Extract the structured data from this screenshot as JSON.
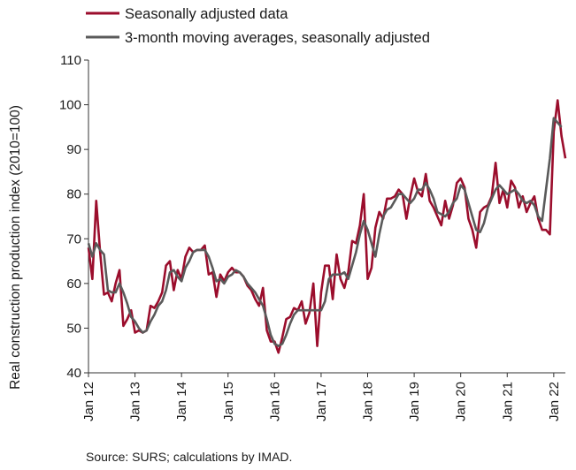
{
  "chart_data": {
    "type": "line",
    "ylabel": "Real construction production index (2010=100)",
    "ylim": [
      40,
      110
    ],
    "yticks": [
      40,
      50,
      60,
      70,
      80,
      90,
      100,
      110
    ],
    "xtick_labels": [
      "Jan 12",
      "Jan 13",
      "Jan 14",
      "Jan 15",
      "Jan 16",
      "Jan 17",
      "Jan 18",
      "Jan 19",
      "Jan 20",
      "Jan 21",
      "Jan 22"
    ],
    "x_start": "Jan 2012",
    "x_end": "Apr 2022",
    "legend_position": "top",
    "grid": false,
    "source": "Source: SURS; calculations by IMAD.",
    "series": [
      {
        "name": "Seasonally adjusted data",
        "color": "#9b0d2c",
        "values": [
          68,
          61,
          78.5,
          67,
          57.5,
          58,
          56,
          60,
          63,
          50.5,
          52,
          54,
          49,
          49.5,
          49,
          49.5,
          55,
          54.5,
          56,
          58,
          64,
          65,
          58.5,
          63,
          61,
          66,
          68,
          67,
          67.5,
          67.5,
          68.5,
          62,
          62.5,
          57,
          62,
          60.5,
          62.5,
          63.5,
          62.5,
          62.5,
          61.5,
          59.5,
          58.5,
          56.5,
          55,
          59,
          49.5,
          47,
          47,
          44.5,
          48,
          52,
          52.5,
          54.5,
          54,
          56,
          51,
          53.5,
          60,
          46,
          58,
          64,
          64,
          56.5,
          66.5,
          61,
          59,
          62.5,
          69.5,
          69,
          73,
          80,
          61,
          63.5,
          72.5,
          76,
          74.5,
          79,
          79,
          79.5,
          81,
          80,
          74.5,
          79.5,
          83.5,
          80.5,
          79.5,
          84.5,
          78.5,
          77,
          75,
          73,
          78.5,
          74.5,
          77.5,
          82.5,
          83.5,
          81.5,
          74.5,
          72,
          68,
          76,
          77,
          77.5,
          79.5,
          87,
          78,
          81,
          77,
          83,
          81.5,
          77,
          79.5,
          76,
          78,
          79.5,
          74.5,
          72,
          72,
          71,
          94,
          101,
          93,
          88
        ]
      },
      {
        "name": "3-month moving averages, seasonally adjusted",
        "color": "#5a5a5a",
        "values": [
          69,
          66,
          69,
          67.5,
          66.5,
          58.5,
          58,
          58,
          60,
          58,
          55.5,
          52.5,
          51.5,
          50,
          49,
          49.5,
          51.5,
          53,
          55,
          56,
          58.5,
          62.5,
          63,
          61.5,
          60.5,
          63.5,
          65,
          67,
          67.5,
          67.5,
          67.5,
          66,
          63.5,
          60.5,
          61,
          60,
          61.5,
          62,
          63,
          62.5,
          61.5,
          60,
          59,
          58,
          56.5,
          55,
          52,
          48.5,
          46.5,
          46,
          46.5,
          48.5,
          51,
          53,
          54,
          54,
          54,
          54,
          54,
          54,
          54,
          56,
          61,
          62,
          62,
          62,
          62.5,
          61,
          64,
          67,
          71,
          74,
          72,
          69,
          66,
          71,
          75,
          76.5,
          77,
          78.5,
          80,
          80,
          79,
          78,
          79,
          81,
          81,
          82.5,
          81,
          79,
          76,
          75.5,
          75,
          76,
          78,
          79,
          82,
          81,
          78,
          75,
          72,
          71.5,
          73.5,
          77,
          79,
          81,
          82,
          81,
          80,
          80.5,
          81,
          80,
          78.5,
          78,
          78.5,
          77.5,
          75,
          74,
          81,
          88,
          97,
          96,
          95
        ]
      }
    ]
  }
}
